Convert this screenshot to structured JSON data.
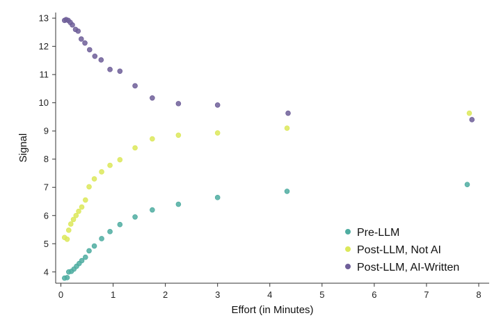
{
  "chart_data": {
    "type": "scatter",
    "title": "",
    "xlabel": "Effort (in Minutes)",
    "ylabel": "Signal",
    "xlim": [
      -0.1,
      8.2
    ],
    "ylim": [
      3.6,
      13.2
    ],
    "xticks": [
      0,
      1,
      2,
      3,
      4,
      5,
      6,
      7,
      8
    ],
    "yticks": [
      4,
      5,
      6,
      7,
      8,
      9,
      10,
      11,
      12,
      13
    ],
    "grid": false,
    "legend_position": "bottom-right",
    "series": [
      {
        "name": "Pre-LLM",
        "color": "#4fada1",
        "x": [
          0.07,
          0.12,
          0.15,
          0.2,
          0.25,
          0.3,
          0.35,
          0.4,
          0.47,
          0.54,
          0.64,
          0.78,
          0.94,
          1.13,
          1.42,
          1.75,
          2.25,
          3.0,
          4.33,
          7.78
        ],
        "y": [
          3.78,
          3.8,
          4.0,
          4.02,
          4.1,
          4.2,
          4.3,
          4.4,
          4.52,
          4.75,
          4.92,
          5.18,
          5.43,
          5.68,
          5.95,
          6.2,
          6.4,
          6.64,
          6.86,
          7.1
        ]
      },
      {
        "name": "Post-LLM, Not AI",
        "color": "#dce85a",
        "x": [
          0.07,
          0.12,
          0.15,
          0.19,
          0.24,
          0.29,
          0.34,
          0.4,
          0.47,
          0.54,
          0.64,
          0.78,
          0.94,
          1.13,
          1.42,
          1.75,
          2.25,
          3.0,
          4.33,
          7.82
        ],
        "y": [
          5.22,
          5.16,
          5.48,
          5.7,
          5.86,
          6.0,
          6.15,
          6.3,
          6.55,
          7.02,
          7.3,
          7.55,
          7.78,
          7.98,
          8.4,
          8.72,
          8.85,
          8.93,
          9.1,
          9.63
        ]
      },
      {
        "name": "Post-LLM, AI-Written",
        "color": "#6f5f99",
        "x": [
          0.07,
          0.1,
          0.14,
          0.18,
          0.22,
          0.28,
          0.33,
          0.39,
          0.46,
          0.55,
          0.65,
          0.77,
          0.94,
          1.13,
          1.42,
          1.75,
          2.25,
          3.0,
          4.35,
          7.87
        ],
        "y": [
          12.92,
          12.95,
          12.92,
          12.85,
          12.76,
          12.6,
          12.54,
          12.26,
          12.12,
          11.88,
          11.65,
          11.52,
          11.18,
          11.12,
          10.6,
          10.17,
          9.97,
          9.92,
          9.63,
          9.4
        ]
      }
    ]
  }
}
